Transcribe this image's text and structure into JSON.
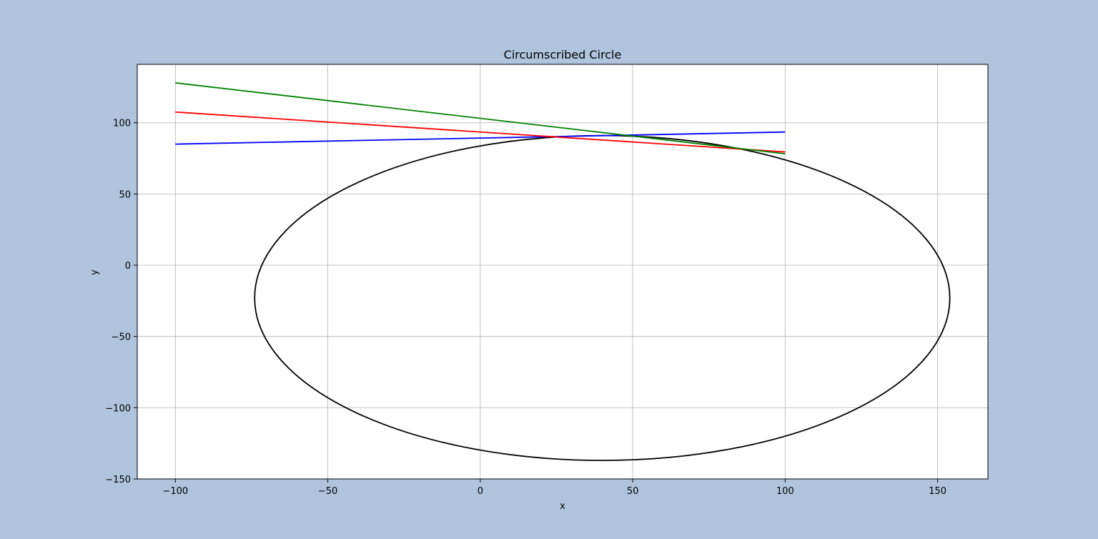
{
  "chart_data": {
    "type": "line",
    "title": "Circumscribed Circle",
    "xlabel": "x",
    "ylabel": "y",
    "xlim": [
      -112.5,
      166.5
    ],
    "ylim": [
      -150,
      141
    ],
    "xticks": [
      -100,
      -50,
      0,
      50,
      100,
      150
    ],
    "yticks": [
      -150,
      -100,
      -50,
      0,
      50,
      100
    ],
    "xtick_labels": [
      "−100",
      "−50",
      "0",
      "50",
      "100",
      "150"
    ],
    "ytick_labels": [
      "−150",
      "−100",
      "−50",
      "0",
      "50",
      "100"
    ],
    "grid": true,
    "series": [
      {
        "color": "#0000ff",
        "x": [
          -100,
          100
        ],
        "y": [
          85,
          93.5
        ]
      },
      {
        "color": "#ff0000",
        "x": [
          -100,
          100
        ],
        "y": [
          107.5,
          79.5
        ]
      },
      {
        "color": "#008000",
        "x": [
          -100,
          100
        ],
        "y": [
          128,
          78.2
        ]
      }
    ],
    "ellipse": {
      "color": "#000000",
      "center": [
        40,
        -23
      ],
      "rx": 114,
      "ry": 114
    }
  },
  "colors": {
    "figure_background": "#b0c4de",
    "axes_background": "#ffffff",
    "grid": "#b0b0b0"
  }
}
